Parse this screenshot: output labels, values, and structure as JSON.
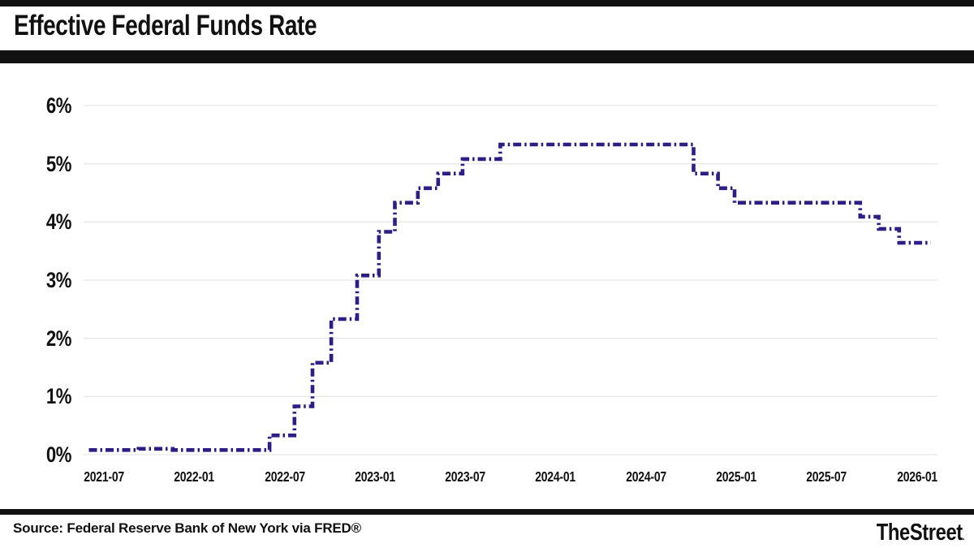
{
  "header": {
    "title": "Effective Federal Funds Rate"
  },
  "footer": {
    "source": "Source: Federal Reserve Bank of New York via FRED®",
    "brand": "TheStreet",
    "brand_dot": "."
  },
  "colors": {
    "line": "#2d1e86",
    "grid": "#e7e7e7",
    "bars": "#111111",
    "text": "#111111",
    "background": "#ffffff"
  },
  "chart_data": {
    "type": "line",
    "subtype": "step-after",
    "title": "Effective Federal Funds Rate",
    "xlabel": "",
    "ylabel": "",
    "ylim": [
      0,
      6
    ],
    "grid": "horizontal-only",
    "legend": "none",
    "line_style": "dash-dot",
    "y_ticks": [
      "0%",
      "1%",
      "2%",
      "3%",
      "4%",
      "5%",
      "6%"
    ],
    "x_ticks": [
      "2021-07",
      "2022-01",
      "2022-07",
      "2023-01",
      "2023-07",
      "2024-01",
      "2024-07",
      "2025-01",
      "2025-07",
      "2026-01"
    ],
    "series_name": "Effective Federal Funds Rate (%)",
    "step_points": [
      {
        "date": "2021-06-01",
        "rate": 0.08
      },
      {
        "date": "2021-09-10",
        "rate": 0.1
      },
      {
        "date": "2021-11-18",
        "rate": 0.08
      },
      {
        "date": "2022-06-01",
        "rate": 0.33
      },
      {
        "date": "2022-07-21",
        "rate": 0.83
      },
      {
        "date": "2022-08-27",
        "rate": 1.58
      },
      {
        "date": "2022-10-04",
        "rate": 2.33
      },
      {
        "date": "2022-11-26",
        "rate": 3.08
      },
      {
        "date": "2023-01-09",
        "rate": 3.83
      },
      {
        "date": "2023-02-11",
        "rate": 4.33
      },
      {
        "date": "2023-03-27",
        "rate": 4.58
      },
      {
        "date": "2023-05-07",
        "rate": 4.83
      },
      {
        "date": "2023-06-26",
        "rate": 5.08
      },
      {
        "date": "2023-09-11",
        "rate": 5.33
      },
      {
        "date": "2024-10-06",
        "rate": 4.83
      },
      {
        "date": "2024-11-25",
        "rate": 4.58
      },
      {
        "date": "2024-12-28",
        "rate": 4.33
      },
      {
        "date": "2025-09-08",
        "rate": 4.09
      },
      {
        "date": "2025-10-15",
        "rate": 3.88
      },
      {
        "date": "2025-11-26",
        "rate": 3.64
      },
      {
        "date": "2026-01-29",
        "rate": 3.64
      }
    ]
  }
}
